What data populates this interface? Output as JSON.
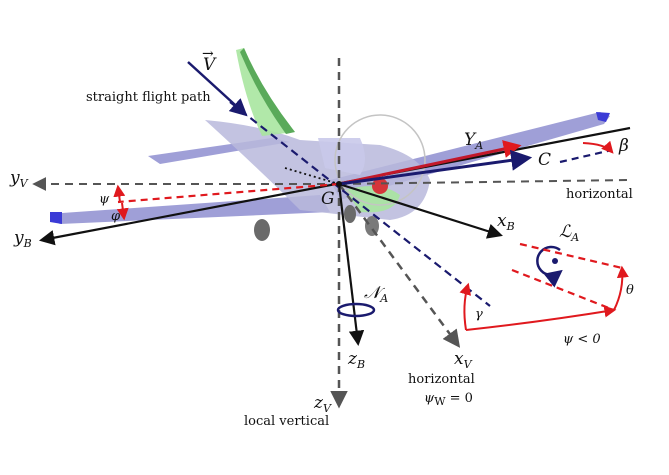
{
  "labels": {
    "velocity": "V",
    "straight_flight_path": "straight flight path",
    "y_A": "Y",
    "y_A_sub": "A",
    "c": "C",
    "beta": "β",
    "y_v": "y",
    "y_v_sub": "V",
    "horizontal_right": "horizontal",
    "psi_left": "ψ",
    "phi": "φ",
    "g": "G",
    "y_b": "y",
    "y_b_sub": "B",
    "x_b": "x",
    "x_b_sub": "B",
    "l_a": "ℒ",
    "l_a_sub": "A",
    "n_a": "𝒩",
    "n_a_sub": "A",
    "theta": "θ",
    "gamma": "γ",
    "psi_lt_0": "ψ < 0",
    "z_b": "z",
    "z_b_sub": "B",
    "x_v": "x",
    "x_v_sub": "V",
    "horizontal_bottom": "horizontal",
    "psi_w": "ψ",
    "psi_w_sub": "W",
    "psi_w_eq": " = 0",
    "z_v": "z",
    "z_v_sub": "V",
    "local_vertical": "local vertical"
  },
  "colors": {
    "axis_black": "#111111",
    "axis_gray": "#555555",
    "navy": "#1a1a6e",
    "red": "#e0191e",
    "plane_body": "#b9b9dc",
    "plane_wing": "#8e8ed0",
    "tail_green": "#5aaa5a",
    "light_green": "#a8e6a0"
  }
}
